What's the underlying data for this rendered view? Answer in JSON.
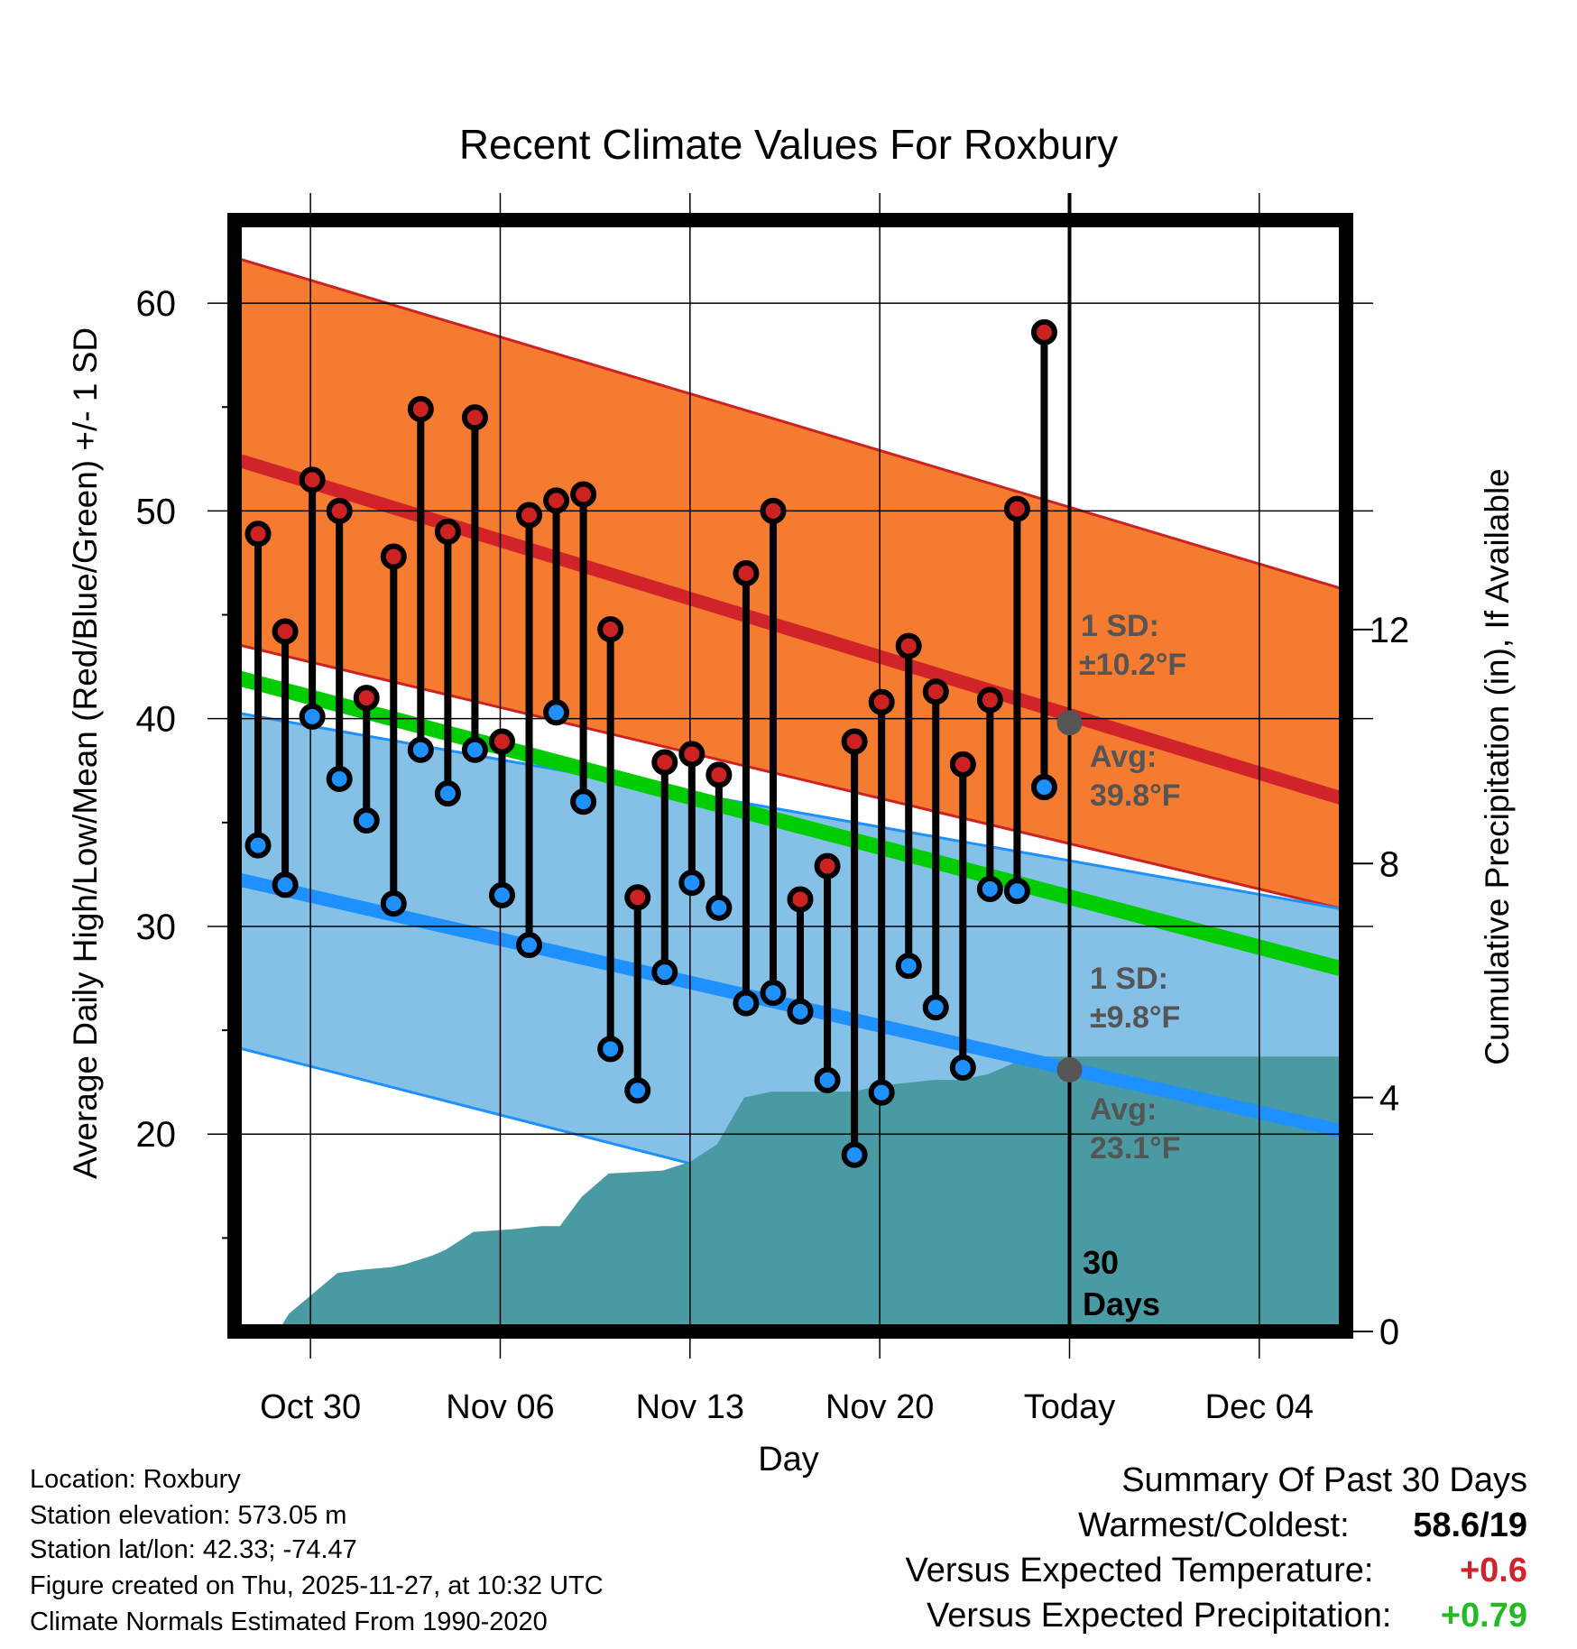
{
  "chart_data": {
    "type": "line",
    "title": "Recent Climate Values For Roxbury",
    "xlabel": "Day",
    "ylabel": "Average Daily High/Low/Mean (Red/Blue/Green) +/- 1 SD",
    "y2label": "Cumulative Precipitation (in), If Available",
    "ylim": [
      10.5,
      64
    ],
    "y2lim": [
      0,
      19
    ],
    "xlim": [
      -2.8,
      38.2
    ],
    "yticks": [
      "20",
      "30",
      "40",
      "50",
      "60"
    ],
    "y2ticks": [
      "0",
      "4",
      "8",
      "12"
    ],
    "xticks": [
      {
        "day": 0,
        "label": "Oct 30"
      },
      {
        "day": 7,
        "label": "Nov 06"
      },
      {
        "day": 14,
        "label": "Nov 13"
      },
      {
        "day": 21,
        "label": "Nov 20"
      },
      {
        "day": 28,
        "label": "Today"
      },
      {
        "day": 35,
        "label": "Dec 04"
      }
    ],
    "today_day": 28,
    "today_box_label": "30 Days",
    "normals": {
      "day_range": [
        -2.8,
        38.2
      ],
      "avg_high": [
        52.5,
        36.1
      ],
      "high_upper": [
        62.2,
        46.2
      ],
      "high_lower": [
        43.6,
        30.8
      ],
      "avg_low": [
        32.3,
        20.1
      ],
      "low_upper": [
        40.3,
        30.8
      ],
      "low_lower": [
        24.2,
        10.5
      ],
      "avg_mean": [
        42.0,
        27.9
      ]
    },
    "series": [
      {
        "name": "Daily High",
        "color": "#cc2222",
        "values": [
          48.9,
          44.2,
          51.5,
          50.0,
          41.0,
          47.8,
          54.9,
          49.0,
          54.5,
          38.9,
          49.8,
          50.5,
          50.8,
          44.3,
          31.4,
          37.9,
          38.3,
          37.3,
          47.0,
          50.0,
          31.3,
          32.9,
          38.9,
          40.8,
          43.5,
          41.3,
          37.8,
          40.9,
          50.1,
          58.6
        ]
      },
      {
        "name": "Daily Low",
        "color": "#1e90ff",
        "values": [
          33.9,
          32.0,
          40.1,
          37.1,
          35.1,
          31.1,
          38.5,
          36.4,
          38.5,
          31.5,
          29.1,
          40.3,
          36.0,
          24.1,
          22.1,
          27.8,
          32.1,
          30.9,
          26.3,
          26.8,
          25.9,
          22.6,
          19.0,
          22.0,
          28.1,
          26.1,
          23.2,
          31.8,
          31.7,
          36.7
        ]
      }
    ],
    "daily_days": [
      -2,
      -1,
      0,
      1,
      2,
      3,
      4,
      5,
      6,
      7,
      8,
      9,
      10,
      11,
      12,
      13,
      14,
      15,
      16,
      17,
      18,
      19,
      20,
      21,
      22,
      23,
      24,
      25,
      26,
      27
    ],
    "precipitation": {
      "days": [
        -1.2,
        -0.8,
        1.0,
        1.8,
        3.0,
        3.5,
        4.5,
        5.0,
        6.0,
        7.5,
        8.5,
        9.2,
        10.0,
        11.0,
        13.0,
        14.0,
        15.0,
        16.0,
        17.0,
        18.0,
        19.0,
        20.0,
        21.0,
        22.0,
        23.0,
        24.0,
        25.0,
        26.0,
        27.0,
        28.0,
        38.2
      ],
      "values": [
        0.0,
        0.3,
        1.0,
        1.05,
        1.1,
        1.15,
        1.3,
        1.4,
        1.7,
        1.75,
        1.8,
        1.8,
        2.3,
        2.7,
        2.75,
        2.9,
        3.2,
        4.0,
        4.1,
        4.1,
        4.1,
        4.1,
        4.2,
        4.25,
        4.3,
        4.3,
        4.4,
        4.6,
        4.7,
        4.7,
        4.7
      ]
    },
    "annotations": {
      "high_sd_label": "1 SD:",
      "high_sd_value": "±10.2°F",
      "high_avg_label": "Avg:",
      "high_avg_value": "39.8°F",
      "low_sd_label": "1 SD:",
      "low_sd_value": "±9.8°F",
      "low_avg_label": "Avg:",
      "low_avg_value": "23.1°F",
      "today_high_avg": 39.8,
      "today_low_avg": 23.1
    },
    "colors": {
      "high_band": "#f47b30",
      "low_band": "#85c1e6",
      "overlap_band": "#960f14",
      "avg_high_line": "#d1232a",
      "avg_low_line": "#1e90ff",
      "mean_line": "#00cc00",
      "precip_fill": "#4a9aa3",
      "annotation_text": "#555555"
    }
  },
  "info": {
    "location": "Location: Roxbury",
    "elevation": "Station elevation: 573.05 m",
    "latlon": "Station lat/lon: 42.33; -74.47",
    "created": "Figure created on Thu, 2025-11-27, at 10:32 UTC",
    "normals": "Climate Normals Estimated From 1990-2020"
  },
  "summary": {
    "title": "Summary Of Past 30 Days",
    "warm_cold_label": "Warmest/Coldest:",
    "warm_cold_value": "58.6/19",
    "temp_label": "Versus Expected Temperature:",
    "temp_value": "+0.6",
    "temp_color": "#d1232a",
    "precip_label": "Versus Expected Precipitation:",
    "precip_value": "+0.79",
    "precip_color": "#22bb22"
  }
}
